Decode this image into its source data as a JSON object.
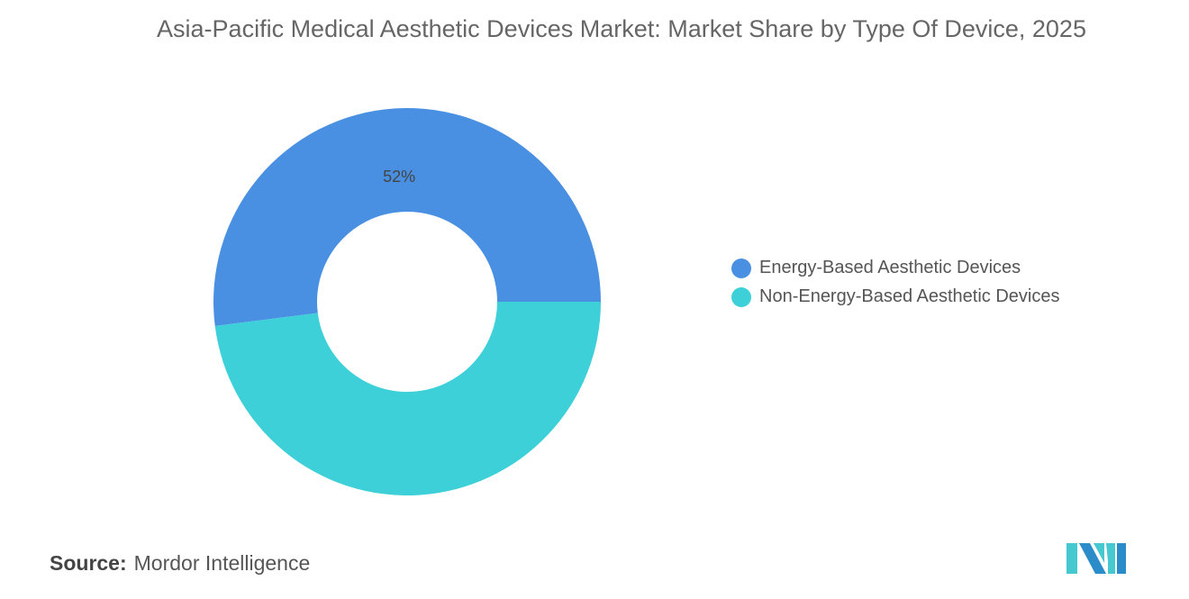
{
  "title": "Asia-Pacific Medical Aesthetic Devices Market: Market Share by Type Of Device, 2025",
  "chart_data": {
    "type": "pie",
    "donut": true,
    "title": "Asia-Pacific Medical Aesthetic Devices Market: Market Share by Type Of Device, 2025",
    "categories": [
      "Energy-Based Aesthetic Devices",
      "Non-Energy-Based Aesthetic Devices"
    ],
    "values": [
      52,
      48
    ],
    "data_labels": [
      "52%",
      ""
    ],
    "colors": [
      "#4a90e2",
      "#3dd0d9"
    ],
    "legend_position": "right"
  },
  "source": {
    "label": "Source:",
    "value": "Mordor Intelligence"
  },
  "logo": {
    "colors": [
      "#2a8cc8",
      "#45c8cf"
    ]
  }
}
